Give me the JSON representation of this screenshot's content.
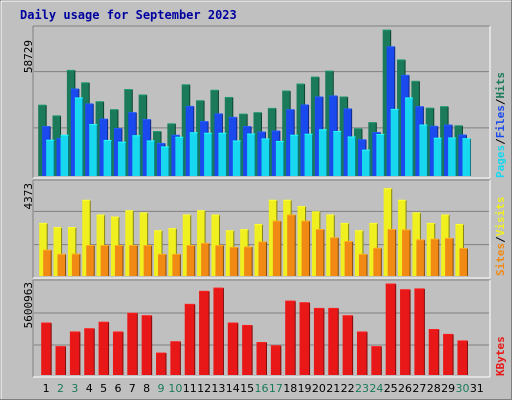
{
  "title": "Daily usage for September 2023",
  "colors": {
    "hits": "#1a7a5a",
    "files": "#1a4aee",
    "pages": "#18d8f0",
    "visits": "#f0f020",
    "sites": "#f08a14",
    "kbytes": "#e81818",
    "weekday_label": "#000000",
    "weekend_label": "#1a7a5a",
    "title": "#0000a0"
  },
  "legend": {
    "top": [
      "Pages",
      "Files",
      "Hits"
    ],
    "middle": [
      "Sites",
      "Visits"
    ],
    "bottom": [
      "KBytes"
    ],
    "separator": "/"
  },
  "chart_data": [
    {
      "type": "bar",
      "panel": "hits-files-pages",
      "ymax_label": "58729",
      "ylim": [
        0,
        58729
      ],
      "x": [
        "1",
        "2",
        "3",
        "4",
        "5",
        "6",
        "7",
        "8",
        "9",
        "10",
        "11",
        "12",
        "13",
        "14",
        "15",
        "16",
        "17",
        "18",
        "19",
        "20",
        "21",
        "22",
        "23",
        "24",
        "25",
        "26",
        "27",
        "28",
        "29",
        "30",
        "31"
      ],
      "series": [
        {
          "name": "Hits",
          "values": [
            28500,
            24200,
            42500,
            37500,
            29900,
            26700,
            34800,
            32600,
            17900,
            21000,
            36700,
            30300,
            34500,
            31600,
            24900,
            25500,
            27200,
            34200,
            37000,
            39800,
            42200,
            31800,
            19000,
            21500,
            58700,
            46700,
            38100,
            27300,
            27900,
            20200,
            0
          ]
        },
        {
          "name": "Files",
          "values": [
            19900,
            15100,
            35000,
            29000,
            22900,
            19100,
            25500,
            22700,
            13100,
            16400,
            28000,
            21900,
            25000,
            23600,
            19900,
            17700,
            18100,
            26700,
            28600,
            31800,
            32200,
            27000,
            14600,
            17500,
            52000,
            40500,
            27900,
            20000,
            20500,
            16500,
            0
          ]
        },
        {
          "name": "Pages",
          "values": [
            14400,
            16400,
            31400,
            20700,
            14300,
            13600,
            16200,
            14100,
            11700,
            15600,
            17400,
            17200,
            17200,
            14100,
            16900,
            14900,
            13900,
            16400,
            16800,
            18600,
            17900,
            15700,
            10400,
            16700,
            26800,
            31400,
            20500,
            15200,
            15300,
            15000,
            0
          ]
        }
      ]
    },
    {
      "type": "bar",
      "panel": "visits-sites",
      "ymax_label": "4373",
      "ylim": [
        0,
        4373
      ],
      "x": [
        "1",
        "2",
        "3",
        "4",
        "5",
        "6",
        "7",
        "8",
        "9",
        "10",
        "11",
        "12",
        "13",
        "14",
        "15",
        "16",
        "17",
        "18",
        "19",
        "20",
        "21",
        "22",
        "23",
        "24",
        "25",
        "26",
        "27",
        "28",
        "29",
        "30",
        "31"
      ],
      "series": [
        {
          "name": "Visits",
          "values": [
            2500,
            2300,
            2300,
            3600,
            2900,
            2800,
            3100,
            3000,
            2150,
            2250,
            2900,
            3100,
            2900,
            2150,
            2200,
            2450,
            3600,
            3600,
            3300,
            3050,
            2900,
            2500,
            2150,
            2500,
            4150,
            3600,
            3000,
            2500,
            2900,
            2450,
            0
          ]
        },
        {
          "name": "Sites",
          "values": [
            1230,
            1030,
            1040,
            1450,
            1450,
            1450,
            1450,
            1450,
            1030,
            1030,
            1450,
            1550,
            1450,
            1360,
            1380,
            1620,
            2610,
            2900,
            2610,
            2210,
            1820,
            1640,
            1030,
            1320,
            2210,
            2190,
            1720,
            1750,
            1790,
            1310,
            0
          ]
        }
      ]
    },
    {
      "type": "bar",
      "panel": "kbytes",
      "ymax_label": "5600963",
      "ylim": [
        0,
        5600963
      ],
      "x": [
        "1",
        "2",
        "3",
        "4",
        "5",
        "6",
        "7",
        "8",
        "9",
        "10",
        "11",
        "12",
        "13",
        "14",
        "15",
        "16",
        "17",
        "18",
        "19",
        "20",
        "21",
        "22",
        "23",
        "24",
        "25",
        "26",
        "27",
        "28",
        "29",
        "30",
        "31"
      ],
      "series": [
        {
          "name": "KBytes",
          "values": [
            3200000,
            1750000,
            2650000,
            2850000,
            3250000,
            2650000,
            3800000,
            3650000,
            1350000,
            2050000,
            4350000,
            5150000,
            5350000,
            3200000,
            3050000,
            2000000,
            1800000,
            4550000,
            4450000,
            4100000,
            4100000,
            3650000,
            2650000,
            1750000,
            5600000,
            5250000,
            5300000,
            2800000,
            2500000,
            2100000,
            0
          ]
        }
      ]
    }
  ],
  "day_labels": {
    "days": [
      "1",
      "2",
      "3",
      "4",
      "5",
      "6",
      "7",
      "8",
      "9",
      "10",
      "11",
      "12",
      "13",
      "14",
      "15",
      "16",
      "17",
      "18",
      "19",
      "20",
      "21",
      "22",
      "23",
      "24",
      "25",
      "26",
      "27",
      "28",
      "29",
      "30",
      "31"
    ],
    "weekend_days": [
      "2",
      "3",
      "9",
      "10",
      "16",
      "17",
      "23",
      "24",
      "30"
    ]
  }
}
